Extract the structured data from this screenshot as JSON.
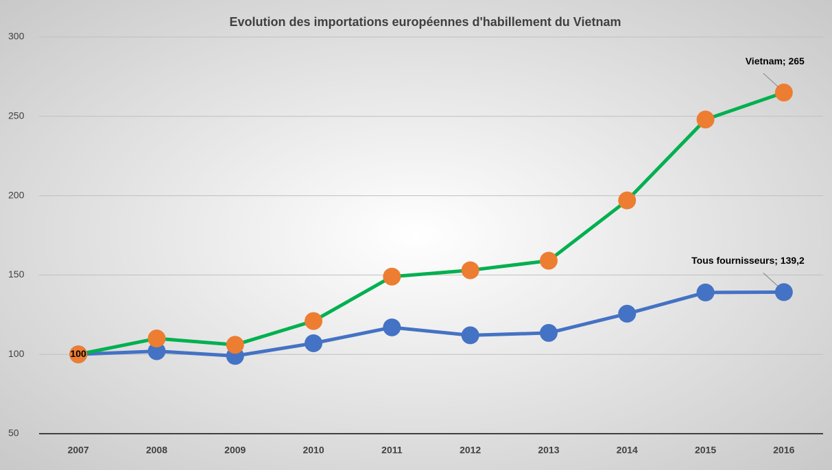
{
  "chart_data": {
    "type": "line",
    "title": "Evolution des importations européennes d'habillement du Vietnam",
    "categories": [
      "2007",
      "2008",
      "2009",
      "2010",
      "2011",
      "2012",
      "2013",
      "2014",
      "2015",
      "2016"
    ],
    "series": [
      {
        "name": "Tous fournisseurs",
        "color": "#4472c4",
        "marker_color": "#4472c4",
        "values": [
          100,
          102,
          99,
          107,
          117,
          112,
          113.5,
          125.6,
          139,
          139.2
        ],
        "value_labels": [
          null,
          null,
          null,
          null,
          null,
          null,
          null,
          null,
          null,
          "Tous fournisseurs; 139,2"
        ]
      },
      {
        "name": "Vietnam",
        "color": "#00b050",
        "marker_color": "#ed7d31",
        "values": [
          100,
          110,
          106,
          121,
          149,
          153,
          159,
          197,
          248,
          265
        ],
        "value_labels": [
          "100",
          null,
          null,
          null,
          null,
          null,
          null,
          null,
          null,
          "Vietnam; 265"
        ]
      }
    ],
    "ylim": [
      50,
      300
    ],
    "yticks": [
      50,
      100,
      150,
      200,
      250,
      300
    ],
    "grid": true
  }
}
